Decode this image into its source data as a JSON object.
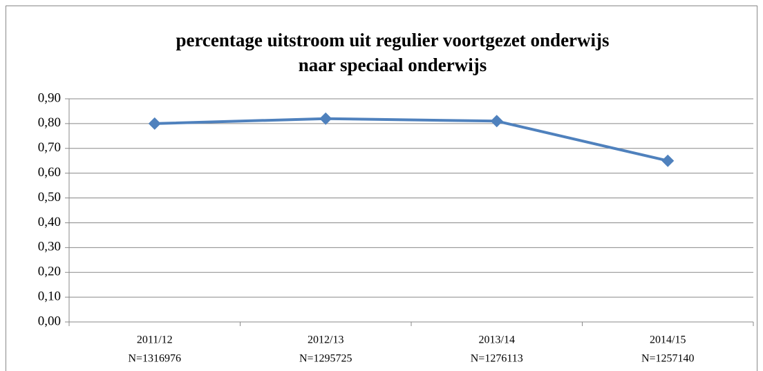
{
  "chart_data": {
    "type": "line",
    "title": [
      "percentage uitstroom uit regulier voortgezet onderwijs",
      "naar speciaal onderwijs"
    ],
    "categories": [
      [
        "2011/12",
        "N=1316976"
      ],
      [
        "2012/13",
        "N=1295725"
      ],
      [
        "2013/14",
        "N=1276113"
      ],
      [
        "2014/15",
        "N=1257140"
      ]
    ],
    "series": [
      {
        "color": "#4f81bd",
        "values": [
          0.8,
          0.82,
          0.81,
          0.65
        ]
      }
    ],
    "ylim": [
      0,
      0.9
    ],
    "yticks": [
      {
        "value": 0,
        "label": "0,00"
      },
      {
        "value": 0.1,
        "label": "0,10"
      },
      {
        "value": 0.2,
        "label": "0,20"
      },
      {
        "value": 0.3,
        "label": "0,30"
      },
      {
        "value": 0.4,
        "label": "0,40"
      },
      {
        "value": 0.5,
        "label": "0,50"
      },
      {
        "value": 0.6,
        "label": "0,60"
      },
      {
        "value": 0.7,
        "label": "0,70"
      },
      {
        "value": 0.8,
        "label": "0,80"
      },
      {
        "value": 0.9,
        "label": "0,90"
      }
    ],
    "grid": true
  }
}
